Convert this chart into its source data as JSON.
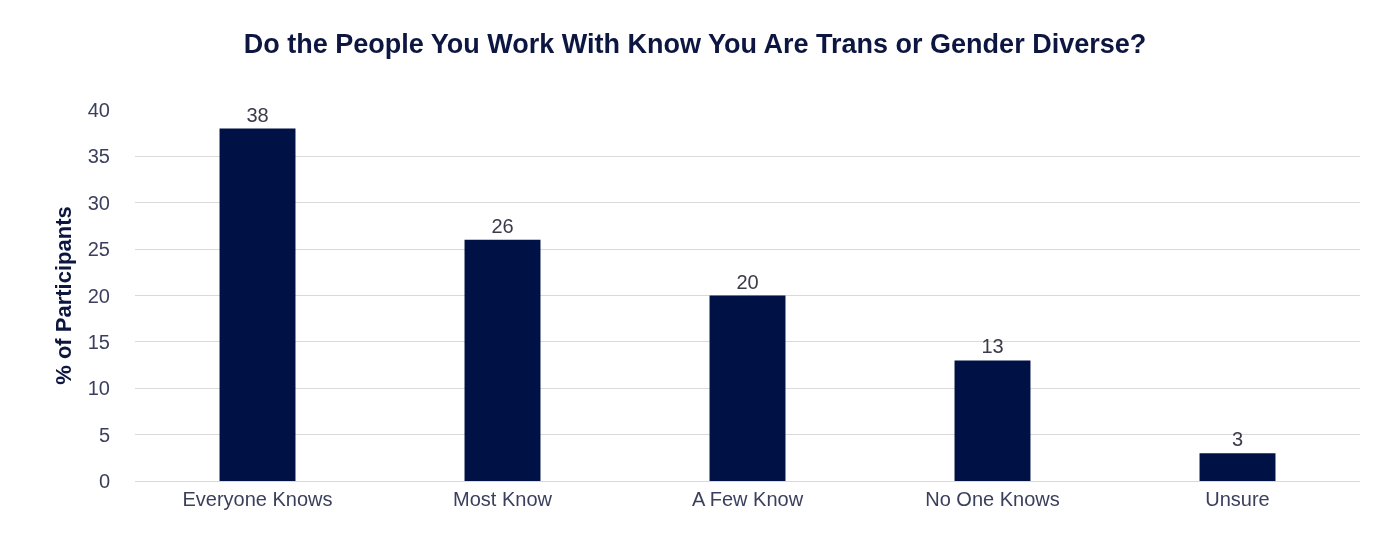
{
  "chart_data": {
    "type": "bar",
    "title": "Do the People You Work With Know You Are Trans or Gender Diverse?",
    "ylabel": "% of Participants",
    "categories": [
      "Everyone Knows",
      "Most Know",
      "A Few Know",
      "No One Knows",
      "Unsure"
    ],
    "values": [
      38,
      26,
      20,
      13,
      3
    ],
    "color": "#001145",
    "ylim": [
      0,
      40
    ],
    "yticks": [
      0,
      5,
      10,
      15,
      20,
      25,
      30,
      35,
      40
    ],
    "grid": "y",
    "data_labels": true,
    "legend": false
  }
}
